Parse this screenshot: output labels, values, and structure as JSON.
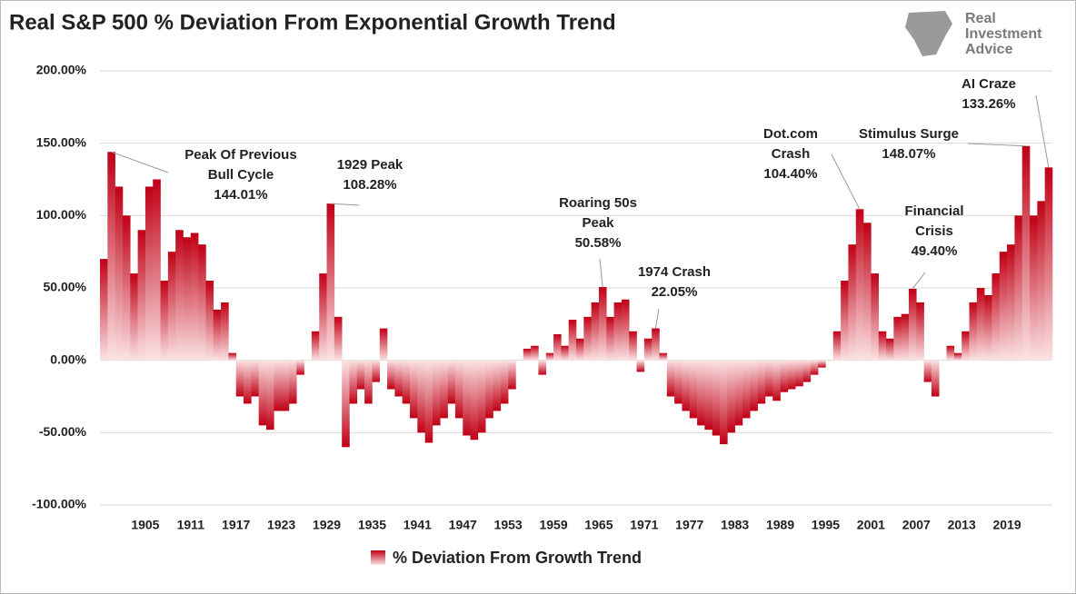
{
  "logo": [
    "Real",
    "Investment",
    "Advice"
  ],
  "chart_data": {
    "type": "bar",
    "title": "Real S&P 500 % Deviation From Exponential Growth Trend",
    "x": [
      1899,
      1900,
      1901,
      1902,
      1903,
      1904,
      1905,
      1906,
      1907,
      1908,
      1909,
      1910,
      1911,
      1912,
      1913,
      1914,
      1915,
      1916,
      1917,
      1918,
      1919,
      1920,
      1921,
      1922,
      1923,
      1924,
      1925,
      1926,
      1927,
      1928,
      1929,
      1930,
      1931,
      1932,
      1933,
      1934,
      1935,
      1936,
      1937,
      1938,
      1939,
      1940,
      1941,
      1942,
      1943,
      1944,
      1945,
      1946,
      1947,
      1948,
      1949,
      1950,
      1951,
      1952,
      1953,
      1954,
      1955,
      1956,
      1957,
      1958,
      1959,
      1960,
      1961,
      1962,
      1963,
      1964,
      1965,
      1966,
      1967,
      1968,
      1969,
      1970,
      1971,
      1972,
      1973,
      1974,
      1975,
      1976,
      1977,
      1978,
      1979,
      1980,
      1981,
      1982,
      1983,
      1984,
      1985,
      1986,
      1987,
      1988,
      1989,
      1990,
      1991,
      1992,
      1993,
      1994,
      1995,
      1996,
      1997,
      1998,
      1999,
      2000,
      2001,
      2002,
      2003,
      2004,
      2005,
      2006,
      2007,
      2008,
      2009,
      2010,
      2011,
      2012,
      2013,
      2014,
      2015,
      2016,
      2017,
      2018,
      2019,
      2020,
      2021,
      2022,
      2023,
      2024
    ],
    "series": [
      {
        "name": "% Deviation From Growth Trend",
        "color": "#c00014",
        "values": [
          70,
          144.01,
          120,
          100,
          60,
          90,
          120,
          125,
          55,
          75,
          90,
          85,
          88,
          80,
          55,
          35,
          40,
          5,
          -25,
          -30,
          -25,
          -45,
          -48,
          -35,
          -35,
          -30,
          -10,
          0,
          20,
          60,
          108.28,
          30,
          -60,
          -30,
          -20,
          -30,
          -15,
          22,
          -20,
          -25,
          -30,
          -40,
          -50,
          -57,
          -45,
          -40,
          -30,
          -40,
          -52,
          -55,
          -50,
          -40,
          -35,
          -30,
          -20,
          0,
          8,
          10,
          -10,
          5,
          18,
          10,
          28,
          15,
          30,
          40,
          50.58,
          30,
          40,
          42,
          20,
          -8,
          15,
          22.05,
          5,
          -25,
          -30,
          -35,
          -40,
          -45,
          -48,
          -52,
          -58,
          -50,
          -45,
          -40,
          -35,
          -30,
          -25,
          -28,
          -22,
          -20,
          -18,
          -15,
          -10,
          -5,
          0,
          20,
          55,
          80,
          104.4,
          95,
          60,
          20,
          15,
          30,
          32,
          49.4,
          40,
          -15,
          -25,
          0,
          10,
          5,
          20,
          40,
          50,
          45,
          60,
          75,
          80,
          100,
          148.07,
          100,
          110,
          133.26
        ]
      }
    ],
    "xlim": [
      1899,
      2025
    ],
    "xticks": [
      1905,
      1911,
      1917,
      1923,
      1929,
      1935,
      1941,
      1947,
      1953,
      1959,
      1965,
      1971,
      1977,
      1983,
      1989,
      1995,
      2001,
      2007,
      2013,
      2019
    ],
    "ylim": [
      -100,
      200
    ],
    "yticks": [
      {
        "value": -100,
        "label": "-100.00%"
      },
      {
        "value": -50,
        "label": "-50.00%"
      },
      {
        "value": 0,
        "label": "0.00%"
      },
      {
        "value": 50,
        "label": "50.00%"
      },
      {
        "value": 100,
        "label": "100.00%"
      },
      {
        "value": 150,
        "label": "150.00%"
      },
      {
        "value": 200,
        "label": "200.00%"
      }
    ],
    "grid": true,
    "legend": "bottom",
    "annotations": [
      {
        "lines": [
          "Peak Of Previous",
          "Bull Cycle"
        ],
        "x": 1900,
        "value": 144.01,
        "value_label": "144.01%"
      },
      {
        "lines": [
          "1929 Peak"
        ],
        "x": 1929,
        "value": 108.28,
        "value_label": "108.28%"
      },
      {
        "lines": [
          "Roaring 50s",
          "Peak"
        ],
        "x": 1965,
        "value": 50.58,
        "value_label": "50.58%"
      },
      {
        "lines": [
          "1974 Crash"
        ],
        "x": 1972,
        "value": 22.05,
        "value_label": "22.05%"
      },
      {
        "lines": [
          "Dot.com",
          "Crash"
        ],
        "x": 1999,
        "value": 104.4,
        "value_label": "104.40%"
      },
      {
        "lines": [
          "Stimulus Surge"
        ],
        "x": 2021,
        "value": 148.07,
        "value_label": "148.07%"
      },
      {
        "lines": [
          "Financial",
          "Crisis"
        ],
        "x": 2006,
        "value": 49.4,
        "value_label": "49.40%"
      },
      {
        "lines": [
          "AI Craze"
        ],
        "x": 2024,
        "value": 133.26,
        "value_label": "133.26%"
      }
    ]
  }
}
